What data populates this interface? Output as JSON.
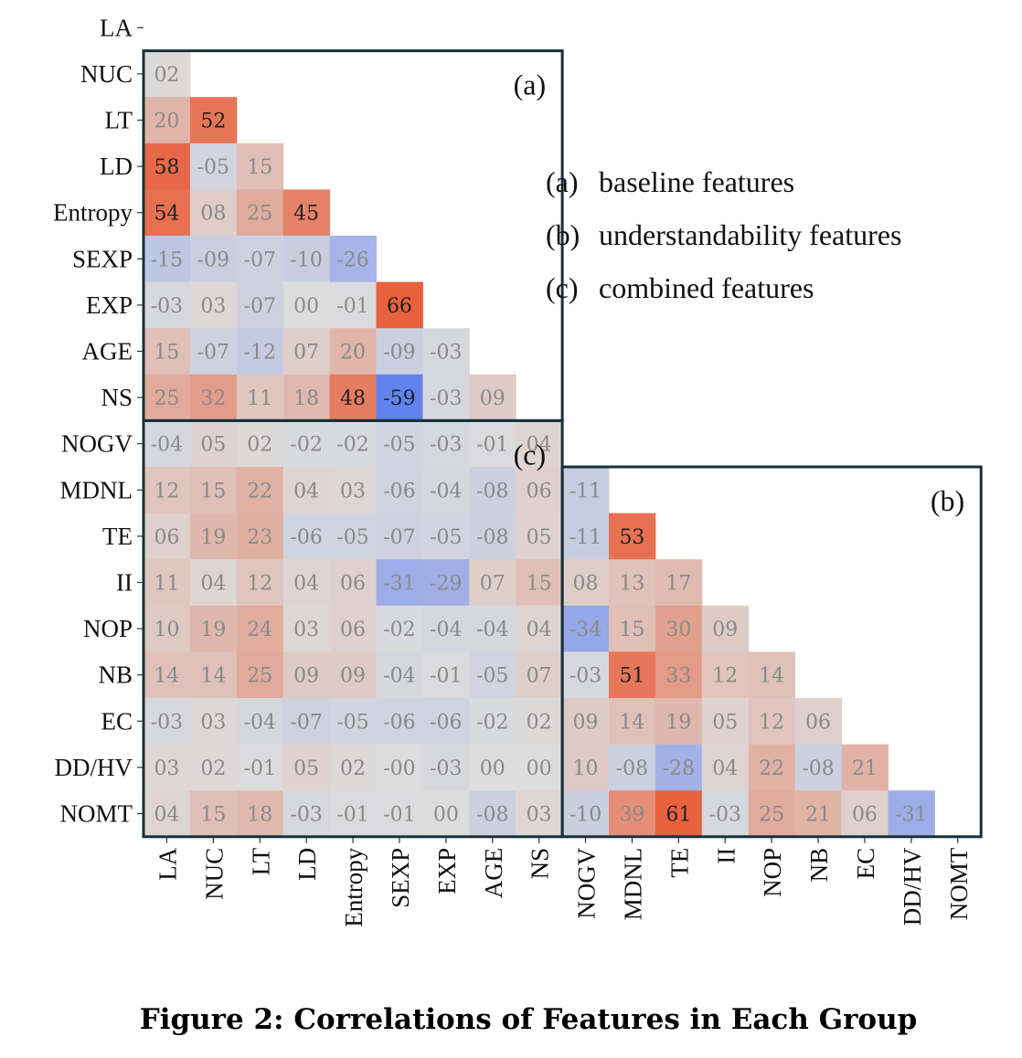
{
  "chart_data": {
    "type": "heatmap",
    "labels": [
      "LA",
      "NUC",
      "LT",
      "LD",
      "Entropy",
      "SEXP",
      "EXP",
      "AGE",
      "NS",
      "NOGV",
      "MDNL",
      "TE",
      "II",
      "NOP",
      "NB",
      "EC",
      "DD/HV",
      "NOMT"
    ],
    "lower_triangle_values": [
      [],
      [
        2
      ],
      [
        20,
        52
      ],
      [
        58,
        -5,
        15
      ],
      [
        54,
        8,
        25,
        45
      ],
      [
        -15,
        -9,
        -7,
        -10,
        -26
      ],
      [
        -3,
        3,
        -7,
        0,
        -1,
        66
      ],
      [
        15,
        -7,
        -12,
        7,
        20,
        -9,
        -3
      ],
      [
        25,
        32,
        11,
        18,
        48,
        -59,
        -3,
        9
      ],
      [
        -4,
        5,
        2,
        -2,
        -2,
        -5,
        -3,
        -1,
        4
      ],
      [
        12,
        15,
        22,
        4,
        3,
        -6,
        -4,
        -8,
        6,
        -11
      ],
      [
        6,
        19,
        23,
        -6,
        -5,
        -7,
        -5,
        -8,
        5,
        -11,
        53
      ],
      [
        11,
        4,
        12,
        4,
        6,
        -31,
        -29,
        7,
        15,
        8,
        13,
        17
      ],
      [
        10,
        19,
        24,
        3,
        6,
        -2,
        -4,
        -4,
        4,
        -34,
        15,
        30,
        9
      ],
      [
        14,
        14,
        25,
        9,
        9,
        -4,
        -1,
        -5,
        7,
        -3,
        51,
        33,
        12,
        14
      ],
      [
        -3,
        3,
        -4,
        -7,
        -5,
        -6,
        -6,
        -2,
        2,
        9,
        14,
        19,
        5,
        12,
        6
      ],
      [
        3,
        2,
        -1,
        5,
        2,
        -0.001,
        -3,
        0,
        0,
        10,
        -8,
        -28,
        4,
        22,
        -8,
        21
      ],
      [
        4,
        15,
        18,
        -3,
        -1,
        -1,
        0,
        -8,
        3,
        -10,
        39,
        61,
        -3,
        25,
        21,
        6,
        -31
      ]
    ],
    "value_scale": [
      -100,
      100
    ],
    "groups": [
      {
        "id": "a",
        "label": "(a)",
        "rows": [
          "NUC",
          "NS"
        ],
        "cols": [
          "LA",
          "NS"
        ]
      },
      {
        "id": "b",
        "label": "(b)",
        "rows": [
          "MDNL",
          "NOMT"
        ],
        "cols": [
          "NOGV",
          "NOMT"
        ]
      },
      {
        "id": "c",
        "label": "(c)",
        "rows": [
          "NOGV",
          "NOMT"
        ],
        "cols": [
          "LA",
          "NS"
        ]
      }
    ],
    "legend": [
      {
        "key": "(a)",
        "text": "baseline features"
      },
      {
        "key": "(b)",
        "text": "understandability features"
      },
      {
        "key": "(c)",
        "text": "combined features"
      }
    ],
    "colors": {
      "negative": "#5a7df0",
      "neutral": "#dddddd",
      "positive": "#e8603c"
    }
  },
  "caption": "Figure 2: Correlations of Features in Each Group"
}
